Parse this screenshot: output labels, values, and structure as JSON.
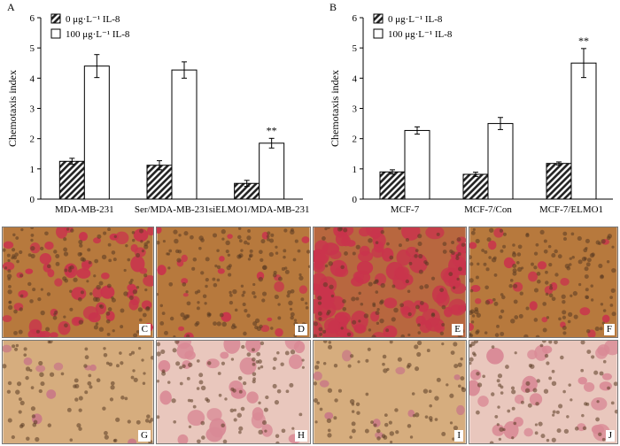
{
  "chart_data": [
    {
      "type": "bar",
      "panel": "A",
      "ylabel": "Chemotaxis index",
      "ylim": [
        0,
        6
      ],
      "yticks": [
        0,
        1,
        2,
        3,
        4,
        5,
        6
      ],
      "categories": [
        "MDA-MB-231",
        "Ser/MDA-MB-231",
        "siELMO1/MDA-MB-231"
      ],
      "series": [
        {
          "name": "0 μg·L⁻¹ IL-8",
          "values": [
            1.25,
            1.12,
            0.52
          ],
          "errors": [
            0.1,
            0.15,
            0.1
          ],
          "fill": "hatched"
        },
        {
          "name": "100 μg·L⁻¹ IL-8",
          "values": [
            4.4,
            4.27,
            1.85
          ],
          "errors": [
            0.38,
            0.27,
            0.16
          ],
          "fill": "white"
        }
      ],
      "annotations": [
        {
          "category": 2,
          "series": 1,
          "text": "**"
        }
      ],
      "legend_position": "top-left"
    },
    {
      "type": "bar",
      "panel": "B",
      "ylabel": "Chemotaxis index",
      "ylim": [
        0,
        6
      ],
      "yticks": [
        0,
        1,
        2,
        3,
        4,
        5,
        6
      ],
      "categories": [
        "MCF-7",
        "MCF-7/Con",
        "MCF-7/ELMO1"
      ],
      "series": [
        {
          "name": "0 μg·L⁻¹ IL-8",
          "values": [
            0.9,
            0.82,
            1.18
          ],
          "errors": [
            0.07,
            0.07,
            0.05
          ],
          "fill": "hatched"
        },
        {
          "name": "100 μg·L⁻¹ IL-8",
          "values": [
            2.27,
            2.5,
            4.5
          ],
          "errors": [
            0.12,
            0.2,
            0.48
          ],
          "fill": "white"
        }
      ],
      "annotations": [
        {
          "category": 2,
          "series": 1,
          "text": "**"
        }
      ],
      "legend_position": "top-left"
    }
  ],
  "micrographs": {
    "row1": [
      {
        "label": "C",
        "stain": "dense-red"
      },
      {
        "label": "D",
        "stain": "sparse-red"
      },
      {
        "label": "E",
        "stain": "very-dense-red"
      },
      {
        "label": "F",
        "stain": "sparse-red"
      }
    ],
    "row2": [
      {
        "label": "G",
        "stain": "pores-light"
      },
      {
        "label": "H",
        "stain": "pores-pink"
      },
      {
        "label": "I",
        "stain": "pores-light"
      },
      {
        "label": "J",
        "stain": "pores-pink"
      }
    ]
  },
  "colors": {
    "bar_stroke": "#000000",
    "hatch": "#222222",
    "background": "#ffffff",
    "membrane_brown": "#b7793d",
    "cell_red": "#c9344c",
    "membrane_light": "#d6ad7e",
    "membrane_pink": "#e9c7bd"
  }
}
